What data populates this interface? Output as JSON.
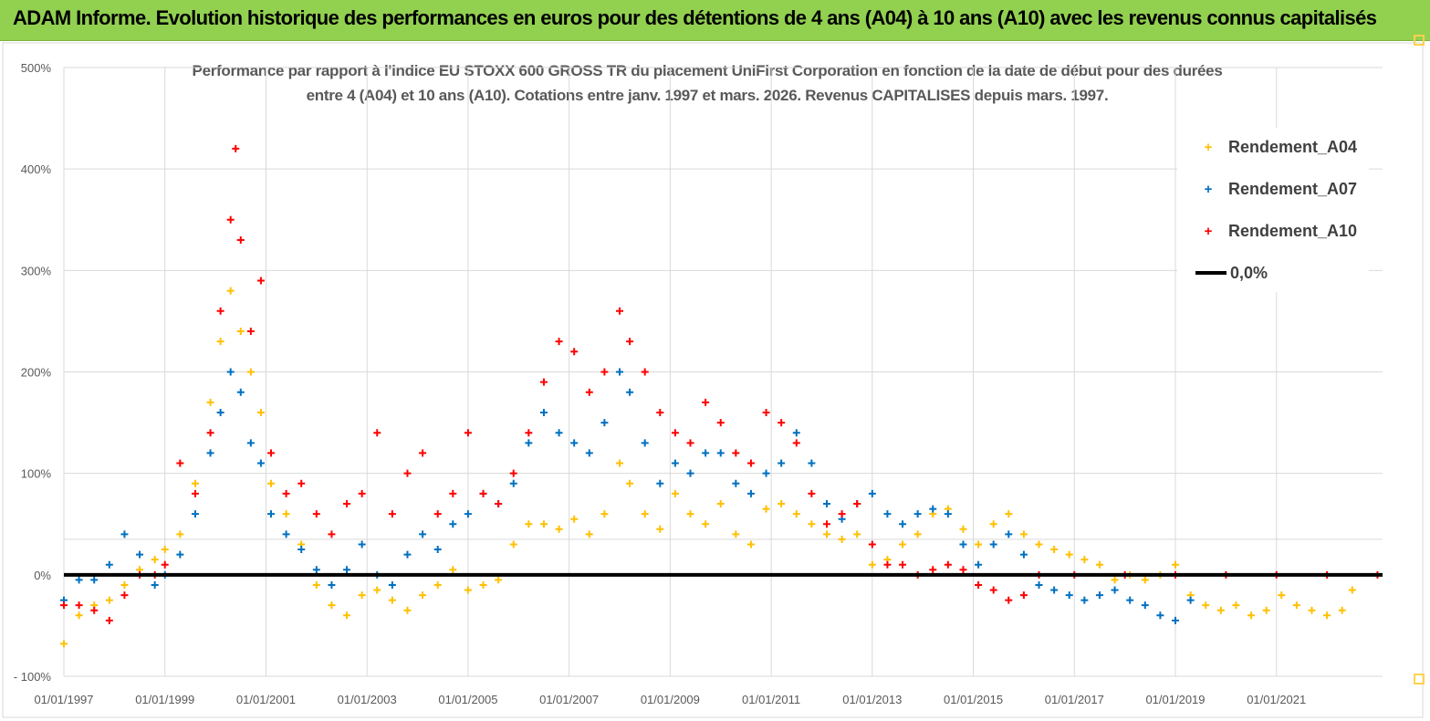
{
  "header": {
    "title": "ADAM Informe. Evolution historique des performances en euros pour des détentions de 4 ans (A04) à 10 ans (A10) avec les revenus connus capitalisés"
  },
  "chart_data": {
    "type": "scatter",
    "title_line1": "Performance par rapport à l'indice EU STOXX 600 GROSS TR  du placement UniFirst Corporation en fonction de la date de début pour des durées",
    "title_line2": "entre 4 (A04) et 10 ans (A10). Cotations entre janv. 1997 et mars. 2026. Revenus CAPITALISES depuis mars. 1997.",
    "xlim": [
      1997.0,
      2023.1
    ],
    "ylim": [
      -100,
      500
    ],
    "x_tick_labels": [
      "01/01/1997",
      "01/01/1999",
      "01/01/2001",
      "01/01/2003",
      "01/01/2005",
      "01/01/2007",
      "01/01/2009",
      "01/01/2011",
      "01/01/2013",
      "01/01/2015",
      "01/01/2017",
      "01/01/2019",
      "01/01/2021"
    ],
    "y_tick_labels": [
      "- 100%",
      "0%",
      "100%",
      "200%",
      "300%",
      "400%",
      "500%"
    ],
    "grid": true,
    "legend_position": "top-right",
    "series": [
      {
        "name": "Rendement_A04",
        "color": "#ffc000",
        "marker": "+",
        "points": [
          [
            1997.0,
            -68
          ],
          [
            1997.3,
            -40
          ],
          [
            1997.6,
            -30
          ],
          [
            1997.9,
            -25
          ],
          [
            1998.2,
            -10
          ],
          [
            1998.5,
            5
          ],
          [
            1998.8,
            15
          ],
          [
            1999.0,
            25
          ],
          [
            1999.3,
            40
          ],
          [
            1999.6,
            90
          ],
          [
            1999.9,
            170
          ],
          [
            2000.1,
            230
          ],
          [
            2000.3,
            280
          ],
          [
            2000.5,
            240
          ],
          [
            2000.7,
            200
          ],
          [
            2000.9,
            160
          ],
          [
            2001.1,
            90
          ],
          [
            2001.4,
            60
          ],
          [
            2001.7,
            30
          ],
          [
            2002.0,
            -10
          ],
          [
            2002.3,
            -30
          ],
          [
            2002.6,
            -40
          ],
          [
            2002.9,
            -20
          ],
          [
            2003.2,
            -15
          ],
          [
            2003.5,
            -25
          ],
          [
            2003.8,
            -35
          ],
          [
            2004.1,
            -20
          ],
          [
            2004.4,
            -10
          ],
          [
            2004.7,
            5
          ],
          [
            2005.0,
            -15
          ],
          [
            2005.3,
            -10
          ],
          [
            2005.6,
            -5
          ],
          [
            2005.9,
            30
          ],
          [
            2006.2,
            50
          ],
          [
            2006.5,
            50
          ],
          [
            2006.8,
            45
          ],
          [
            2007.1,
            55
          ],
          [
            2007.4,
            40
          ],
          [
            2007.7,
            60
          ],
          [
            2008.0,
            110
          ],
          [
            2008.2,
            90
          ],
          [
            2008.5,
            60
          ],
          [
            2008.8,
            45
          ],
          [
            2009.1,
            80
          ],
          [
            2009.4,
            60
          ],
          [
            2009.7,
            50
          ],
          [
            2010.0,
            70
          ],
          [
            2010.3,
            40
          ],
          [
            2010.6,
            30
          ],
          [
            2010.9,
            65
          ],
          [
            2011.2,
            70
          ],
          [
            2011.5,
            60
          ],
          [
            2011.8,
            50
          ],
          [
            2012.1,
            40
          ],
          [
            2012.4,
            35
          ],
          [
            2012.7,
            40
          ],
          [
            2013.0,
            10
          ],
          [
            2013.3,
            15
          ],
          [
            2013.6,
            30
          ],
          [
            2013.9,
            40
          ],
          [
            2014.2,
            60
          ],
          [
            2014.5,
            65
          ],
          [
            2014.8,
            45
          ],
          [
            2015.1,
            30
          ],
          [
            2015.4,
            50
          ],
          [
            2015.7,
            60
          ],
          [
            2016.0,
            40
          ],
          [
            2016.3,
            30
          ],
          [
            2016.6,
            25
          ],
          [
            2016.9,
            20
          ],
          [
            2017.2,
            15
          ],
          [
            2017.5,
            10
          ],
          [
            2017.8,
            -5
          ],
          [
            2018.1,
            0
          ],
          [
            2018.4,
            -5
          ],
          [
            2018.7,
            0
          ],
          [
            2019.0,
            10
          ],
          [
            2019.3,
            -20
          ],
          [
            2019.6,
            -30
          ],
          [
            2019.9,
            -35
          ],
          [
            2020.2,
            -30
          ],
          [
            2020.5,
            -40
          ],
          [
            2020.8,
            -35
          ],
          [
            2021.1,
            -20
          ],
          [
            2021.4,
            -30
          ],
          [
            2021.7,
            -35
          ],
          [
            2022.0,
            -40
          ],
          [
            2022.3,
            -35
          ],
          [
            2022.5,
            -15
          ]
        ]
      },
      {
        "name": "Rendement_A07",
        "color": "#0070c0",
        "marker": "+",
        "points": [
          [
            1997.0,
            -25
          ],
          [
            1997.3,
            -5
          ],
          [
            1997.6,
            -5
          ],
          [
            1997.9,
            10
          ],
          [
            1998.2,
            40
          ],
          [
            1998.5,
            20
          ],
          [
            1998.8,
            -10
          ],
          [
            1999.0,
            0
          ],
          [
            1999.3,
            20
          ],
          [
            1999.6,
            60
          ],
          [
            1999.9,
            120
          ],
          [
            2000.1,
            160
          ],
          [
            2000.3,
            200
          ],
          [
            2000.5,
            180
          ],
          [
            2000.7,
            130
          ],
          [
            2000.9,
            110
          ],
          [
            2001.1,
            60
          ],
          [
            2001.4,
            40
          ],
          [
            2001.7,
            25
          ],
          [
            2002.0,
            5
          ],
          [
            2002.3,
            -10
          ],
          [
            2002.6,
            5
          ],
          [
            2002.9,
            30
          ],
          [
            2003.2,
            0
          ],
          [
            2003.5,
            -10
          ],
          [
            2003.8,
            20
          ],
          [
            2004.1,
            40
          ],
          [
            2004.4,
            25
          ],
          [
            2004.7,
            50
          ],
          [
            2005.0,
            60
          ],
          [
            2005.3,
            80
          ],
          [
            2005.6,
            70
          ],
          [
            2005.9,
            90
          ],
          [
            2006.2,
            130
          ],
          [
            2006.5,
            160
          ],
          [
            2006.8,
            140
          ],
          [
            2007.1,
            130
          ],
          [
            2007.4,
            120
          ],
          [
            2007.7,
            150
          ],
          [
            2008.0,
            200
          ],
          [
            2008.2,
            180
          ],
          [
            2008.5,
            130
          ],
          [
            2008.8,
            90
          ],
          [
            2009.1,
            110
          ],
          [
            2009.4,
            100
          ],
          [
            2009.7,
            120
          ],
          [
            2010.0,
            120
          ],
          [
            2010.3,
            90
          ],
          [
            2010.6,
            80
          ],
          [
            2010.9,
            100
          ],
          [
            2011.2,
            110
          ],
          [
            2011.5,
            140
          ],
          [
            2011.8,
            110
          ],
          [
            2012.1,
            70
          ],
          [
            2012.4,
            55
          ],
          [
            2012.7,
            70
          ],
          [
            2013.0,
            80
          ],
          [
            2013.3,
            60
          ],
          [
            2013.6,
            50
          ],
          [
            2013.9,
            60
          ],
          [
            2014.2,
            65
          ],
          [
            2014.5,
            60
          ],
          [
            2014.8,
            30
          ],
          [
            2015.1,
            10
          ],
          [
            2015.4,
            30
          ],
          [
            2015.7,
            40
          ],
          [
            2016.0,
            20
          ],
          [
            2016.3,
            -10
          ],
          [
            2016.6,
            -15
          ],
          [
            2016.9,
            -20
          ],
          [
            2017.2,
            -25
          ],
          [
            2017.5,
            -20
          ],
          [
            2017.8,
            -15
          ],
          [
            2018.1,
            -25
          ],
          [
            2018.4,
            -30
          ],
          [
            2018.7,
            -40
          ],
          [
            2019.0,
            -45
          ],
          [
            2019.3,
            -25
          ]
        ]
      },
      {
        "name": "Rendement_A10",
        "color": "#ff0000",
        "marker": "+",
        "points": [
          [
            1997.0,
            -30
          ],
          [
            1997.3,
            -30
          ],
          [
            1997.6,
            -35
          ],
          [
            1997.9,
            -45
          ],
          [
            1998.2,
            -20
          ],
          [
            1998.5,
            0
          ],
          [
            1998.8,
            0
          ],
          [
            1999.0,
            10
          ],
          [
            1999.3,
            110
          ],
          [
            1999.6,
            80
          ],
          [
            1999.9,
            140
          ],
          [
            2000.1,
            260
          ],
          [
            2000.3,
            350
          ],
          [
            2000.4,
            420
          ],
          [
            2000.5,
            330
          ],
          [
            2000.7,
            240
          ],
          [
            2000.9,
            290
          ],
          [
            2001.1,
            120
          ],
          [
            2001.4,
            80
          ],
          [
            2001.7,
            90
          ],
          [
            2002.0,
            60
          ],
          [
            2002.3,
            40
          ],
          [
            2002.6,
            70
          ],
          [
            2002.9,
            80
          ],
          [
            2003.2,
            140
          ],
          [
            2003.5,
            60
          ],
          [
            2003.8,
            100
          ],
          [
            2004.1,
            120
          ],
          [
            2004.4,
            60
          ],
          [
            2004.7,
            80
          ],
          [
            2005.0,
            140
          ],
          [
            2005.3,
            80
          ],
          [
            2005.6,
            70
          ],
          [
            2005.9,
            100
          ],
          [
            2006.2,
            140
          ],
          [
            2006.5,
            190
          ],
          [
            2006.8,
            230
          ],
          [
            2007.1,
            220
          ],
          [
            2007.4,
            180
          ],
          [
            2007.7,
            200
          ],
          [
            2008.0,
            260
          ],
          [
            2008.2,
            230
          ],
          [
            2008.5,
            200
          ],
          [
            2008.8,
            160
          ],
          [
            2009.1,
            140
          ],
          [
            2009.4,
            130
          ],
          [
            2009.7,
            170
          ],
          [
            2010.0,
            150
          ],
          [
            2010.3,
            120
          ],
          [
            2010.6,
            110
          ],
          [
            2010.9,
            160
          ],
          [
            2011.2,
            150
          ],
          [
            2011.5,
            130
          ],
          [
            2011.8,
            80
          ],
          [
            2012.1,
            50
          ],
          [
            2012.4,
            60
          ],
          [
            2012.7,
            70
          ],
          [
            2013.0,
            30
          ],
          [
            2013.3,
            10
          ],
          [
            2013.6,
            10
          ],
          [
            2013.9,
            0
          ],
          [
            2014.2,
            5
          ],
          [
            2014.5,
            10
          ],
          [
            2014.8,
            5
          ],
          [
            2015.1,
            -10
          ],
          [
            2015.4,
            -15
          ],
          [
            2015.7,
            -25
          ],
          [
            2016.0,
            -20
          ],
          [
            2016.3,
            0
          ],
          [
            2017.0,
            0
          ],
          [
            2018.0,
            0
          ],
          [
            2019.0,
            0
          ],
          [
            2020.0,
            0
          ],
          [
            2021.0,
            0
          ],
          [
            2022.0,
            0
          ],
          [
            2023.0,
            0
          ]
        ]
      },
      {
        "name": "0,0%",
        "color": "#000000",
        "marker": "line",
        "points": [
          [
            1997.0,
            0
          ],
          [
            2023.1,
            0
          ]
        ]
      }
    ]
  }
}
